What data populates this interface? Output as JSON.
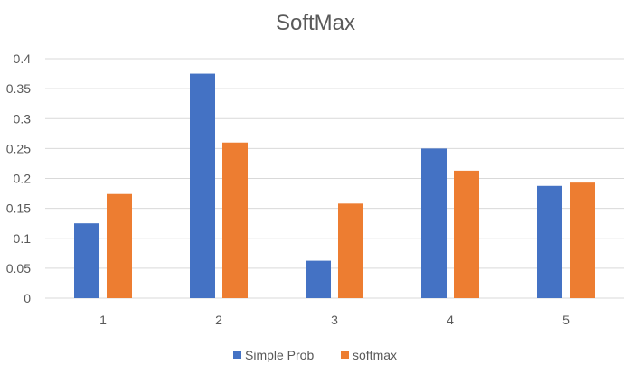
{
  "chart_data": {
    "type": "bar",
    "title": "SoftMax",
    "xlabel": "",
    "ylabel": "",
    "categories": [
      "1",
      "2",
      "3",
      "4",
      "5"
    ],
    "series": [
      {
        "name": "Simple Prob",
        "color": "#4472c4",
        "values": [
          0.125,
          0.375,
          0.0625,
          0.25,
          0.1875
        ]
      },
      {
        "name": "softmax",
        "color": "#ed7d31",
        "values": [
          0.174,
          0.26,
          0.158,
          0.213,
          0.193
        ]
      }
    ],
    "ylim": [
      0,
      0.4
    ],
    "yticks": [
      "0",
      "0.05",
      "0.1",
      "0.15",
      "0.2",
      "0.25",
      "0.3",
      "0.35",
      "0.4"
    ],
    "grid": true,
    "legend": "bottom"
  }
}
